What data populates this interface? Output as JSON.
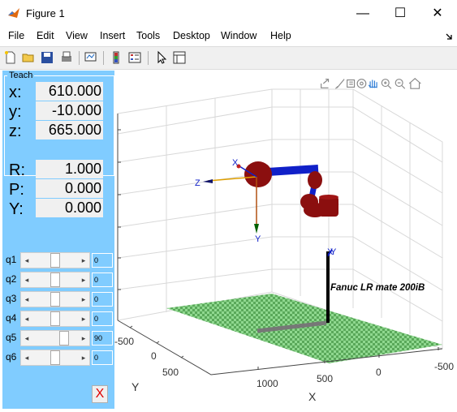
{
  "window": {
    "title": "Figure 1",
    "minimize": "—",
    "maximize": "☐",
    "close": "✕"
  },
  "menu": [
    "File",
    "Edit",
    "View",
    "Insert",
    "Tools",
    "Desktop",
    "Window",
    "Help"
  ],
  "teach": {
    "title": "Teach",
    "position": [
      {
        "label": "x:",
        "value": "610.000"
      },
      {
        "label": "y:",
        "value": "-10.000"
      },
      {
        "label": "z:",
        "value": "665.000"
      }
    ],
    "orientation": [
      {
        "label": "R:",
        "value": "1.000"
      },
      {
        "label": "P:",
        "value": "0.000"
      },
      {
        "label": "Y:",
        "value": "0.000"
      }
    ],
    "joints": [
      {
        "label": "q1",
        "value": "0",
        "level": 0.5
      },
      {
        "label": "q2",
        "value": "0",
        "level": 0.5
      },
      {
        "label": "q3",
        "value": "0",
        "level": 0.5
      },
      {
        "label": "q4",
        "value": "0",
        "level": 0.5
      },
      {
        "label": "q5",
        "value": "90",
        "level": 0.75
      },
      {
        "label": "q6",
        "value": "0",
        "level": 0.5
      }
    ],
    "close_label": "X"
  },
  "plot": {
    "robot_label": "Fanuc LR mate 200iB",
    "x_axis_label": "X",
    "y_axis_label": "Y",
    "x_ticks": [
      "1000",
      "500",
      "0",
      "-500"
    ],
    "y_ticks": [
      "-500",
      "0",
      "500"
    ],
    "frame_labels": {
      "x": "X",
      "y": "Y",
      "z": "Z",
      "base_x": "X",
      "base_y": "Y"
    }
  },
  "colors": {
    "panel": "#80ccff",
    "robot_red": "#8b0f0f",
    "robot_blue": "#1020c8",
    "floor": "#7fcf7f"
  }
}
